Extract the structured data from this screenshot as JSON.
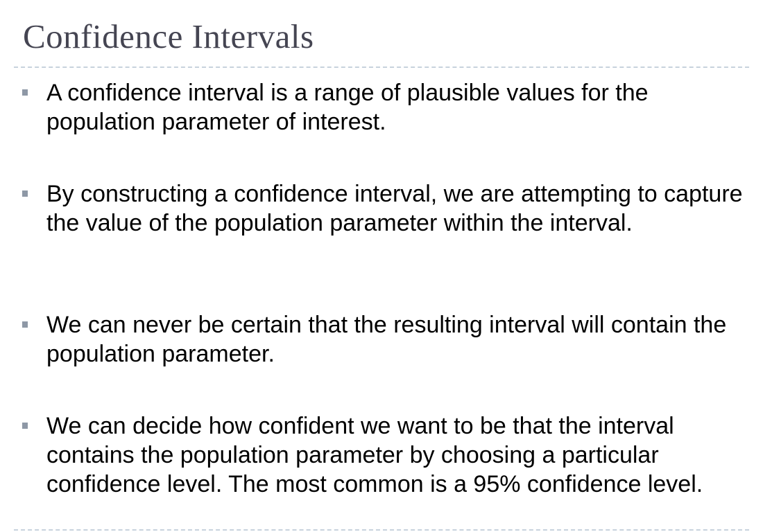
{
  "slide": {
    "title": "Confidence Intervals",
    "bullets": [
      "A confidence interval is a range of plausible values for the population parameter of interest.",
      "By constructing a confidence interval, we are attempting to capture the value of the population parameter within the interval.",
      "We can never be certain that the resulting interval will contain the population parameter.",
      "We can decide how confident we want to be that the interval contains the population parameter by choosing a particular confidence level. The most common is a 95% confidence level."
    ]
  },
  "colors": {
    "title": "#454552",
    "body_text": "#000000",
    "bullet_marker": "#8e98a6",
    "divider": "#c7d2dd"
  }
}
